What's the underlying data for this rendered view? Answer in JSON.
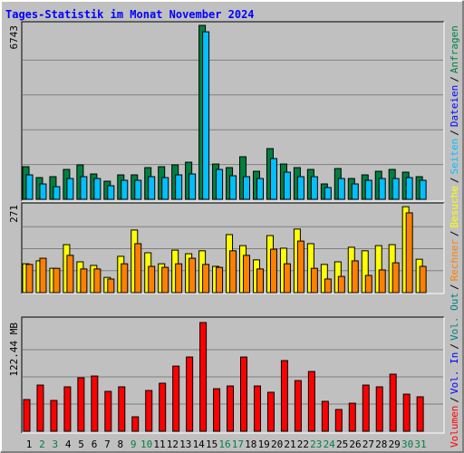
{
  "chart_data": {
    "type": "bar",
    "title": "Tages-Statistik im Monat November 2024",
    "categories": [
      "1",
      "2",
      "3",
      "4",
      "5",
      "6",
      "7",
      "8",
      "9",
      "10",
      "11",
      "12",
      "13",
      "14",
      "15",
      "16",
      "17",
      "18",
      "19",
      "20",
      "21",
      "22",
      "23",
      "24",
      "25",
      "26",
      "27",
      "28",
      "29",
      "30",
      "31"
    ],
    "category_colors": [
      "#000000",
      "#008040",
      "#008040",
      "#000000",
      "#000000",
      "#000000",
      "#000000",
      "#000000",
      "#008040",
      "#008040",
      "#000000",
      "#000000",
      "#000000",
      "#000000",
      "#000000",
      "#008040",
      "#008040",
      "#000000",
      "#000000",
      "#000000",
      "#000000",
      "#000000",
      "#008040",
      "#008040",
      "#000000",
      "#000000",
      "#000000",
      "#000000",
      "#000000",
      "#008040",
      "#008040"
    ],
    "legend_separator": "/",
    "legend": [
      {
        "name": "Volumen",
        "color": "#ff0000"
      },
      {
        "name": "Vol. In",
        "color": "#0000ff"
      },
      {
        "name": "Vol. Out",
        "color": "#008080"
      },
      {
        "name": "Rechner",
        "color": "#ff8000"
      },
      {
        "name": "Besuche",
        "color": "#ffff00"
      },
      {
        "name": "Seiten",
        "color": "#00c0ff"
      },
      {
        "name": "Dateien",
        "color": "#0000ff"
      },
      {
        "name": "Anfragen",
        "color": "#008040"
      }
    ],
    "panels": [
      {
        "ylim": [
          0,
          6743
        ],
        "yticks": [
          6743
        ],
        "series": [
          {
            "color": "#008040",
            "values": [
              1264,
              842,
              878,
              1158,
              1334,
              983,
              702,
              948,
              948,
              1229,
              1264,
              1334,
              1439,
              6743,
              1369,
              1229,
              1650,
              1088,
              1966,
              1369,
              1229,
              1158,
              597,
              1193,
              807,
              948,
              1088,
              1158,
              1053,
              878,
              null
            ]
          },
          {
            "color": "#00c0ff",
            "values": [
              948,
              597,
              491,
              807,
              878,
              807,
              527,
              737,
              737,
              878,
              842,
              948,
              983,
              6494,
              1158,
              913,
              878,
              807,
              1580,
              1053,
              878,
              878,
              456,
              807,
              597,
              737,
              807,
              807,
              842,
              737,
              null
            ]
          }
        ]
      },
      {
        "ylim": [
          0,
          271
        ],
        "yticks": [
          271
        ],
        "series": [
          {
            "color": "#ffff00",
            "values": [
              89,
              98,
              75,
              148,
              95,
              84,
              47,
              112,
              193,
              123,
              89,
              131,
              120,
              129,
              81,
              179,
              145,
              101,
              176,
              137,
              196,
              151,
              87,
              95,
              140,
              129,
              145,
              148,
              265,
              103,
              null
            ]
          },
          {
            "color": "#ff8000",
            "values": [
              87,
              106,
              75,
              115,
              73,
              73,
              42,
              89,
              151,
              81,
              78,
              89,
              106,
              87,
              78,
              129,
              115,
              73,
              134,
              89,
              159,
              75,
              42,
              50,
              98,
              53,
              70,
              92,
              246,
              81,
              null
            ]
          }
        ]
      },
      {
        "ylim": [
          0,
          122.44
        ],
        "yticks": [
          {
            "value": 122.44,
            "label": "122.44 MB"
          }
        ],
        "series": [
          {
            "color": "#ff0000",
            "values": [
              35.7,
              52.0,
              34.7,
              50.0,
              60.2,
              62.2,
              44.9,
              50.0,
              16.3,
              45.9,
              54.1,
              73.4,
              83.6,
              122.44,
              47.9,
              51.0,
              83.6,
              51.0,
              43.9,
              79.6,
              57.1,
              67.3,
              33.7,
              24.5,
              31.6,
              52.0,
              50.0,
              64.3,
              41.8,
              38.8,
              null
            ]
          }
        ]
      }
    ]
  }
}
